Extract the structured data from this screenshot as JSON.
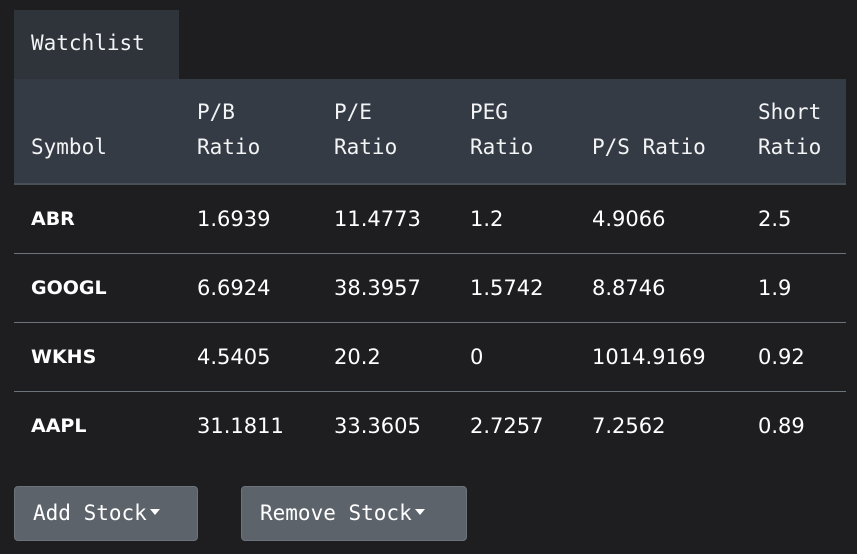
{
  "tab": {
    "label": "Watchlist"
  },
  "table": {
    "headers": [
      {
        "line1": "",
        "line2": "Symbol"
      },
      {
        "line1": "P/B",
        "line2": "Ratio"
      },
      {
        "line1": "P/E",
        "line2": "Ratio"
      },
      {
        "line1": "PEG",
        "line2": "Ratio"
      },
      {
        "line1": "",
        "line2": "P/S Ratio"
      },
      {
        "line1": "Short",
        "line2": "Ratio"
      }
    ],
    "rows": [
      {
        "symbol": "ABR",
        "pb": "1.6939",
        "pe": "11.4773",
        "peg": "1.2",
        "ps": "4.9066",
        "short": "2.5"
      },
      {
        "symbol": "GOOGL",
        "pb": "6.6924",
        "pe": "38.3957",
        "peg": "1.5742",
        "ps": "8.8746",
        "short": "1.9"
      },
      {
        "symbol": "WKHS",
        "pb": "4.5405",
        "pe": "20.2",
        "peg": "0",
        "ps": "1014.9169",
        "short": "0.92"
      },
      {
        "symbol": "AAPL",
        "pb": "31.1811",
        "pe": "33.3605",
        "peg": "2.7257",
        "ps": "7.2562",
        "short": "0.89"
      }
    ]
  },
  "buttons": {
    "add_label": "Add Stock",
    "remove_label": "Remove Stock"
  }
}
